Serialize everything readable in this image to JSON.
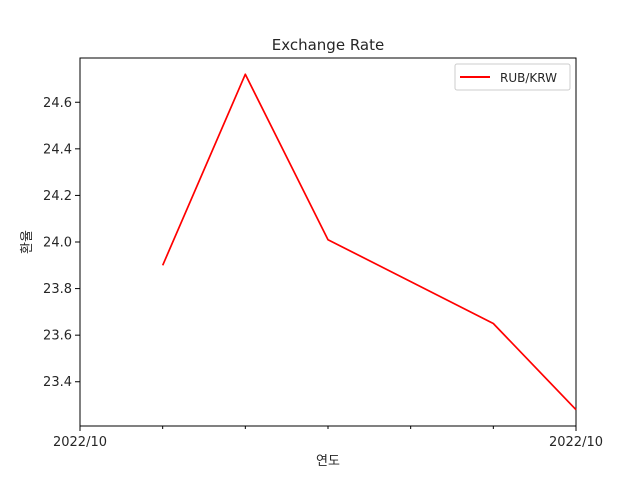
{
  "chart_data": {
    "type": "line",
    "title": "Exchange Rate",
    "xlabel": "연도",
    "ylabel": "환율",
    "x_tick_labels": [
      "2022/10",
      "2022/10"
    ],
    "x_minor_ticks": 5,
    "y_ticks": [
      "23.4",
      "23.6",
      "23.8",
      "24.0",
      "24.2",
      "24.4",
      "24.6"
    ],
    "ylim": [
      23.21,
      24.79
    ],
    "grid": false,
    "legend_position": "top-right",
    "series": [
      {
        "name": "RUB/KRW",
        "color": "#ff0000",
        "values": [
          23.9,
          24.72,
          24.01,
          23.65,
          23.28
        ]
      }
    ]
  }
}
